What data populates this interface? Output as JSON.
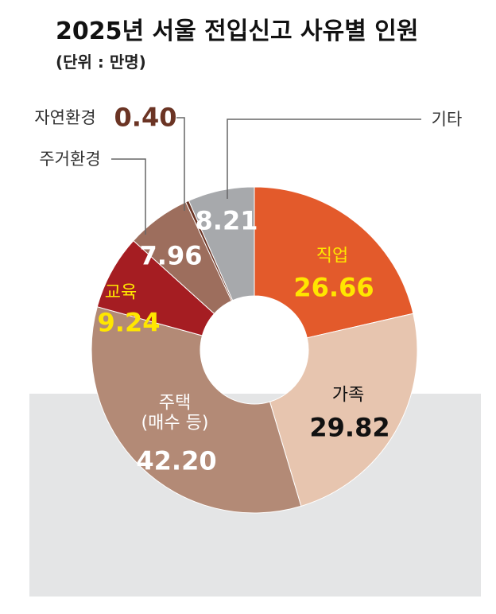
{
  "chart_data": {
    "type": "donut",
    "title": "2025년 서울 전입신고 사유별 인원",
    "subtitle": "(단위 : 만명)",
    "categories": [
      "직업",
      "가족",
      "주택\n(매수 등)",
      "교육",
      "주거환경",
      "자연환경",
      "기타"
    ],
    "values": [
      26.66,
      29.82,
      42.2,
      9.24,
      7.96,
      0.4,
      8.21
    ],
    "value_labels": [
      "26.66",
      "29.82",
      "42.20",
      "9.24",
      "7.96",
      "0.40",
      "8.21"
    ],
    "colors": [
      "#e35a2b",
      "#e7c5af",
      "#b38a76",
      "#a51d22",
      "#9d6e5d",
      "#6b3424",
      "#a7a9ac"
    ]
  }
}
